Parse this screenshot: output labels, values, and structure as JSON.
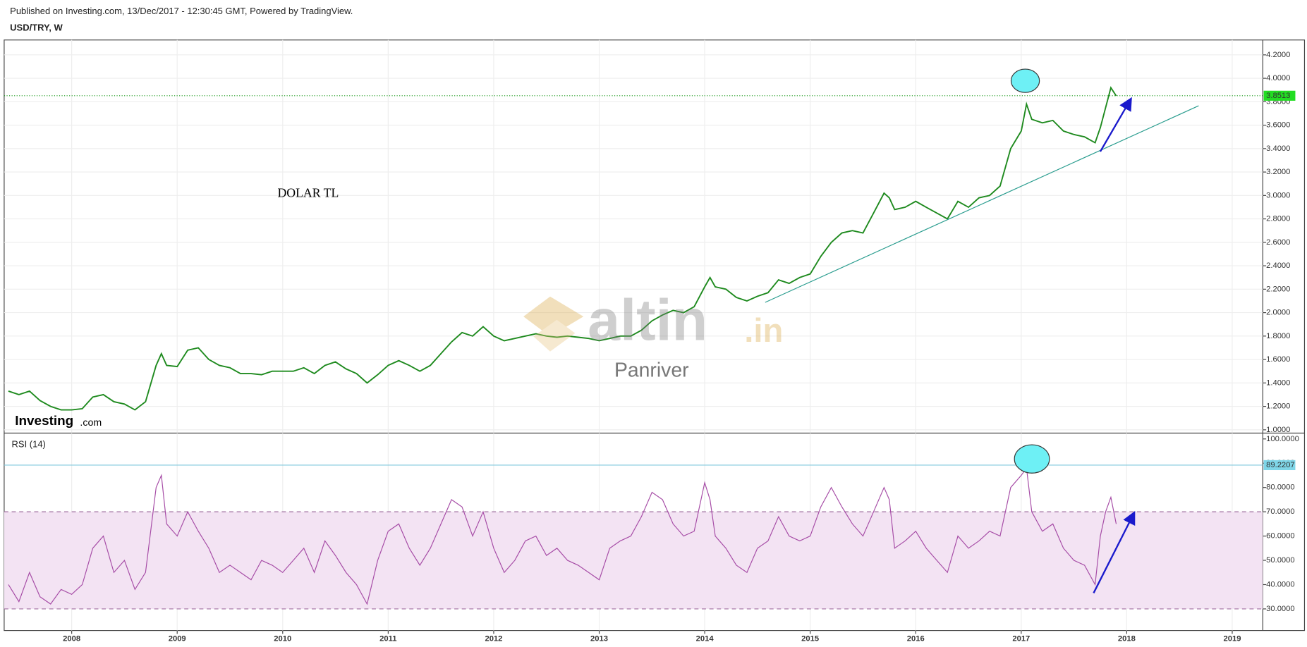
{
  "header": {
    "published": "Published on Investing.com, 13/Dec/2017 - 12:30:45 GMT, Powered by TradingView.",
    "symbol": "USD/TRY, W"
  },
  "watermark": {
    "brand": "altin",
    "suffix": ".in",
    "author": "Panriver"
  },
  "logo": {
    "main": "Investing",
    "suffix": ".com"
  },
  "chart_data": [
    {
      "type": "line",
      "annotation": "DOLAR TL",
      "color": "#1e8a1e",
      "last_value": 3.8513,
      "last_color": "#22dd22",
      "xlim": [
        2007.36,
        2019.29
      ],
      "xticks": [
        2008,
        2009,
        2010,
        2011,
        2012,
        2013,
        2014,
        2015,
        2016,
        2017,
        2018,
        2019
      ],
      "ylim": [
        0.979,
        4.327
      ],
      "yticks": [
        {
          "value": 1.0,
          "label": "1.0000"
        },
        {
          "value": 1.2,
          "label": "1.2000"
        },
        {
          "value": 1.4,
          "label": "1.4000"
        },
        {
          "value": 1.6,
          "label": "1.6000"
        },
        {
          "value": 1.8,
          "label": "1.8000"
        },
        {
          "value": 2.0,
          "label": "2.0000"
        },
        {
          "value": 2.2,
          "label": "2.2000"
        },
        {
          "value": 2.4,
          "label": "2.4000"
        },
        {
          "value": 2.6,
          "label": "2.6000"
        },
        {
          "value": 2.8,
          "label": "2.8000"
        },
        {
          "value": 3.0,
          "label": "3.0000"
        },
        {
          "value": 3.2,
          "label": "3.2000"
        },
        {
          "value": 3.4,
          "label": "3.4000"
        },
        {
          "value": 3.6,
          "label": "3.6000"
        },
        {
          "value": 3.8,
          "label": "3.8000"
        },
        {
          "value": 4.0,
          "label": "4.0000"
        },
        {
          "value": 4.2,
          "label": "4.2000"
        }
      ],
      "x": [
        2007.4,
        2007.5,
        2007.6,
        2007.7,
        2007.8,
        2007.9,
        2008.0,
        2008.1,
        2008.2,
        2008.3,
        2008.4,
        2008.5,
        2008.6,
        2008.7,
        2008.8,
        2008.85,
        2008.9,
        2009.0,
        2009.1,
        2009.2,
        2009.3,
        2009.4,
        2009.5,
        2009.6,
        2009.7,
        2009.8,
        2009.9,
        2010.0,
        2010.1,
        2010.2,
        2010.3,
        2010.4,
        2010.5,
        2010.6,
        2010.7,
        2010.8,
        2010.9,
        2011.0,
        2011.1,
        2011.2,
        2011.3,
        2011.4,
        2011.5,
        2011.6,
        2011.7,
        2011.8,
        2011.9,
        2012.0,
        2012.1,
        2012.2,
        2012.3,
        2012.4,
        2012.5,
        2012.6,
        2012.7,
        2012.8,
        2012.9,
        2013.0,
        2013.1,
        2013.2,
        2013.3,
        2013.4,
        2013.5,
        2013.6,
        2013.7,
        2013.8,
        2013.9,
        2014.0,
        2014.05,
        2014.1,
        2014.2,
        2014.3,
        2014.4,
        2014.5,
        2014.6,
        2014.7,
        2014.8,
        2014.9,
        2015.0,
        2015.1,
        2015.2,
        2015.3,
        2015.4,
        2015.5,
        2015.6,
        2015.7,
        2015.75,
        2015.8,
        2015.9,
        2016.0,
        2016.1,
        2016.2,
        2016.3,
        2016.4,
        2016.5,
        2016.6,
        2016.7,
        2016.8,
        2016.9,
        2017.0,
        2017.05,
        2017.1,
        2017.2,
        2017.3,
        2017.4,
        2017.5,
        2017.6,
        2017.7,
        2017.75,
        2017.8,
        2017.85,
        2017.9
      ],
      "values": [
        1.33,
        1.3,
        1.33,
        1.25,
        1.2,
        1.17,
        1.17,
        1.18,
        1.28,
        1.3,
        1.24,
        1.22,
        1.17,
        1.24,
        1.55,
        1.65,
        1.55,
        1.54,
        1.68,
        1.7,
        1.6,
        1.55,
        1.53,
        1.48,
        1.48,
        1.47,
        1.5,
        1.5,
        1.5,
        1.53,
        1.48,
        1.55,
        1.58,
        1.52,
        1.48,
        1.4,
        1.47,
        1.55,
        1.59,
        1.55,
        1.5,
        1.55,
        1.65,
        1.75,
        1.83,
        1.8,
        1.88,
        1.8,
        1.76,
        1.78,
        1.8,
        1.82,
        1.8,
        1.79,
        1.8,
        1.79,
        1.78,
        1.76,
        1.78,
        1.8,
        1.8,
        1.85,
        1.93,
        1.98,
        2.02,
        2.0,
        2.05,
        2.22,
        2.3,
        2.22,
        2.2,
        2.13,
        2.1,
        2.14,
        2.17,
        2.28,
        2.25,
        2.3,
        2.33,
        2.48,
        2.6,
        2.68,
        2.7,
        2.68,
        2.85,
        3.02,
        2.98,
        2.88,
        2.9,
        2.95,
        2.9,
        2.85,
        2.8,
        2.95,
        2.9,
        2.98,
        3.0,
        3.08,
        3.4,
        3.55,
        3.78,
        3.65,
        3.62,
        3.64,
        3.55,
        3.52,
        3.5,
        3.45,
        3.58,
        3.75,
        3.92,
        3.85
      ]
    },
    {
      "type": "line",
      "title": "RSI (14)",
      "color": "#a64ca6",
      "last_value": 89.2207,
      "last_color": "#7fd6e8",
      "bands": [
        30,
        70
      ],
      "xlim": [
        2007.36,
        2019.29
      ],
      "ylim": [
        21.1,
        102.4
      ],
      "yticks": [
        {
          "value": 30,
          "label": "30.0000"
        },
        {
          "value": 40,
          "label": "40.0000"
        },
        {
          "value": 50,
          "label": "50.0000"
        },
        {
          "value": 60,
          "label": "60.0000"
        },
        {
          "value": 70,
          "label": "70.0000"
        },
        {
          "value": 80,
          "label": "80.0000"
        },
        {
          "value": 90,
          "label": "90.0000"
        },
        {
          "value": 100,
          "label": "100.0000"
        }
      ],
      "x": [
        2007.4,
        2007.5,
        2007.6,
        2007.7,
        2007.8,
        2007.9,
        2008.0,
        2008.1,
        2008.2,
        2008.3,
        2008.4,
        2008.5,
        2008.6,
        2008.7,
        2008.8,
        2008.85,
        2008.9,
        2009.0,
        2009.1,
        2009.2,
        2009.3,
        2009.4,
        2009.5,
        2009.6,
        2009.7,
        2009.8,
        2009.9,
        2010.0,
        2010.1,
        2010.2,
        2010.3,
        2010.4,
        2010.5,
        2010.6,
        2010.7,
        2010.8,
        2010.9,
        2011.0,
        2011.1,
        2011.2,
        2011.3,
        2011.4,
        2011.5,
        2011.6,
        2011.7,
        2011.8,
        2011.9,
        2012.0,
        2012.1,
        2012.2,
        2012.3,
        2012.4,
        2012.5,
        2012.6,
        2012.7,
        2012.8,
        2012.9,
        2013.0,
        2013.1,
        2013.2,
        2013.3,
        2013.4,
        2013.5,
        2013.6,
        2013.7,
        2013.8,
        2013.9,
        2014.0,
        2014.05,
        2014.1,
        2014.2,
        2014.3,
        2014.4,
        2014.5,
        2014.6,
        2014.7,
        2014.8,
        2014.9,
        2015.0,
        2015.1,
        2015.2,
        2015.3,
        2015.4,
        2015.5,
        2015.6,
        2015.7,
        2015.75,
        2015.8,
        2015.9,
        2016.0,
        2016.1,
        2016.2,
        2016.3,
        2016.4,
        2016.5,
        2016.6,
        2016.7,
        2016.8,
        2016.9,
        2017.0,
        2017.05,
        2017.1,
        2017.2,
        2017.3,
        2017.4,
        2017.5,
        2017.6,
        2017.7,
        2017.75,
        2017.8,
        2017.85,
        2017.9
      ],
      "values": [
        40,
        33,
        45,
        35,
        32,
        38,
        36,
        40,
        55,
        60,
        45,
        50,
        38,
        45,
        80,
        85,
        65,
        60,
        70,
        62,
        55,
        45,
        48,
        45,
        42,
        50,
        48,
        45,
        50,
        55,
        45,
        58,
        52,
        45,
        40,
        32,
        50,
        62,
        65,
        55,
        48,
        55,
        65,
        75,
        72,
        60,
        70,
        55,
        45,
        50,
        58,
        60,
        52,
        55,
        50,
        48,
        45,
        42,
        55,
        58,
        60,
        68,
        78,
        75,
        65,
        60,
        62,
        82,
        75,
        60,
        55,
        48,
        45,
        55,
        58,
        68,
        60,
        58,
        60,
        72,
        80,
        72,
        65,
        60,
        70,
        80,
        75,
        55,
        58,
        62,
        55,
        50,
        45,
        60,
        55,
        58,
        62,
        60,
        80,
        85,
        88,
        70,
        62,
        65,
        55,
        50,
        48,
        40,
        60,
        70,
        76,
        65
      ]
    }
  ]
}
